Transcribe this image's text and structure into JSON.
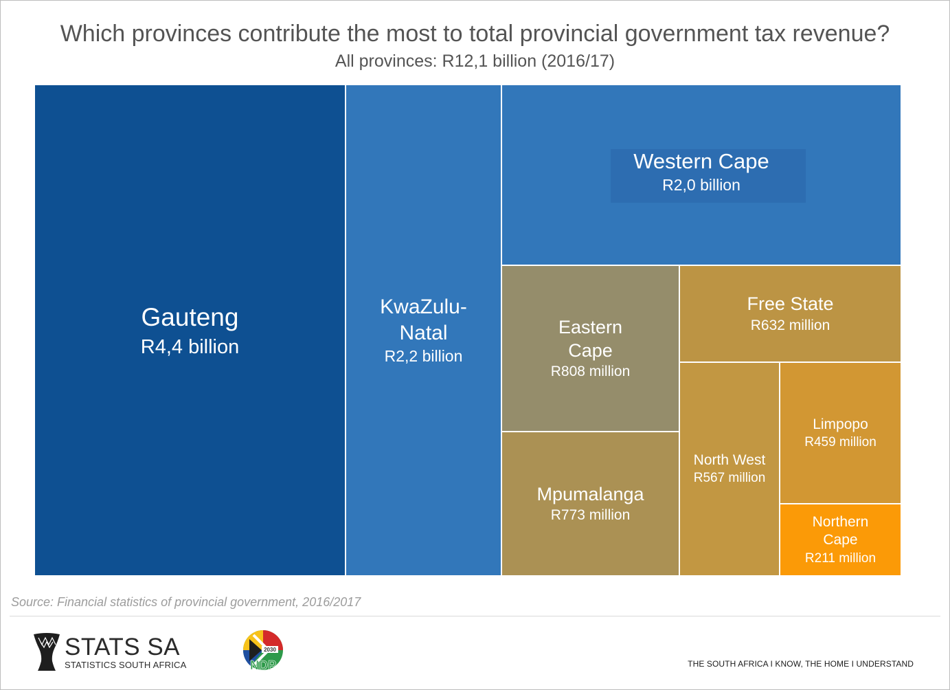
{
  "title": "Which provinces contribute the most to total provincial government tax revenue?",
  "subtitle": "All provinces: R12,1 billion (2016/17)",
  "chart_data": {
    "type": "treemap",
    "title": "Which provinces contribute the most to total provincial government tax revenue?",
    "subtitle": "All provinces: R12,1 billion (2016/17)",
    "unit": "R million",
    "items": [
      {
        "name": "Gauteng",
        "label": "R4,4 billion",
        "value": 4400,
        "color": "#0e5092"
      },
      {
        "name": "KwaZulu-\nNatal",
        "label": "R2,2 billion",
        "value": 2200,
        "color": "#3277ba"
      },
      {
        "name": "Western Cape",
        "label": "R2,0 billion",
        "value": 2000,
        "color": "#3277ba"
      },
      {
        "name": "Eastern\nCape",
        "label": "R808 million",
        "value": 808,
        "color": "#958d6b"
      },
      {
        "name": "Mpumalanga",
        "label": "R773 million",
        "value": 773,
        "color": "#ab9154"
      },
      {
        "name": "Free State",
        "label": "R632 million",
        "value": 632,
        "color": "#bc9444"
      },
      {
        "name": "North West",
        "label": "R567 million",
        "value": 567,
        "color": "#c29742"
      },
      {
        "name": "Limpopo",
        "label": "R459 million",
        "value": 459,
        "color": "#d29733"
      },
      {
        "name": "Northern\nCape",
        "label": "R211 million",
        "value": 211,
        "color": "#fb9a07"
      }
    ]
  },
  "source": "Source: Financial statistics of provincial government, 2016/2017",
  "footer": {
    "logo_text": "STATS SA",
    "logo_subtext": "STATISTICS SOUTH AFRICA",
    "ndp_year": "2030",
    "ndp_text": "NDP",
    "tagline": "THE SOUTH AFRICA I KNOW, THE HOME I UNDERSTAND"
  }
}
